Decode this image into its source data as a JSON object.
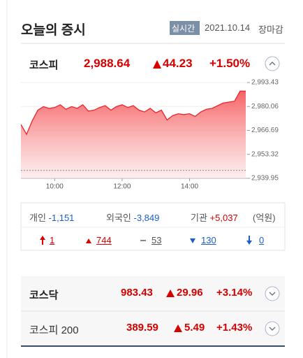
{
  "header": {
    "title": "오늘의 증시",
    "badge": "실시간",
    "date": "2021.10.14",
    "status": "장마감"
  },
  "kospi": {
    "name": "코스피",
    "value": "2,988.64",
    "change": "44.23",
    "percent": "+1.50%"
  },
  "chart_data": {
    "type": "line",
    "categories": [
      null,
      null,
      null,
      null,
      null,
      null,
      "10:00",
      null,
      null,
      null,
      null,
      null,
      null,
      null,
      null,
      null,
      null,
      null,
      "12:00",
      null,
      null,
      null,
      null,
      null,
      null,
      null,
      null,
      null,
      null,
      null,
      "14:00",
      null,
      null,
      null,
      null,
      null,
      null,
      null,
      null,
      null,
      null
    ],
    "series": [
      {
        "color": "#e8262b",
        "values": [
          2970.0,
          2964.5,
          2972.0,
          2978.0,
          2980.0,
          2979.0,
          2979.5,
          2981.0,
          2978.5,
          2980.0,
          2979.0,
          2981.0,
          2977.5,
          2978.0,
          2979.5,
          2980.5,
          2978.0,
          2980.0,
          2981.0,
          2979.5,
          2980.5,
          2978.0,
          2977.0,
          2979.0,
          2976.5,
          2978.0,
          2972.5,
          2975.0,
          2976.0,
          2975.5,
          2976.0,
          2974.5,
          2977.0,
          2978.5,
          2979.0,
          2980.5,
          2982.0,
          2982.5,
          2983.0,
          2988.64,
          2988.64
        ]
      }
    ],
    "reference_line": 2944.41,
    "ylim": [
      2939.95,
      2993.43
    ],
    "yticks": [
      {
        "value": 2939.95,
        "label": "2,939.95"
      },
      {
        "value": 2953.32,
        "label": "2,953.32"
      },
      {
        "value": 2966.69,
        "label": "2,966.69"
      },
      {
        "value": 2980.06,
        "label": "2,980.06"
      },
      {
        "value": 2993.43,
        "label": "2,993.43"
      }
    ],
    "grid": true
  },
  "investors": [
    {
      "label": "개인",
      "value": "-1,151"
    },
    {
      "label": "외국인",
      "value": "-3,849"
    },
    {
      "label": "기관",
      "value": "+5,037"
    }
  ],
  "unit": "(억원)",
  "breadth": {
    "upper_limit": "1",
    "rising": "744",
    "flat": "53",
    "falling": "130",
    "lower_limit": "0"
  },
  "kosdaq": {
    "name": "코스닥",
    "value": "983.43",
    "change": "29.96",
    "percent": "+3.14%"
  },
  "kospi200": {
    "name": "코스피 200",
    "value": "389.59",
    "change": "5.49",
    "percent": "+1.43%"
  }
}
